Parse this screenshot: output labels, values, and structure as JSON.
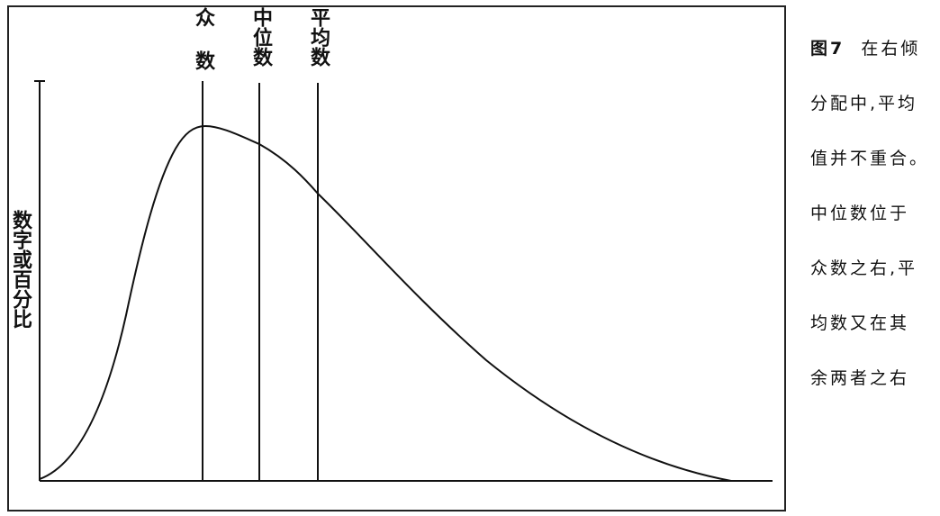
{
  "figure": {
    "ylabel": "数字或百分比",
    "markers": {
      "mode_label": "众数",
      "median_label": "中位数",
      "mean_label": "平均数"
    },
    "curve": {
      "shape": "right-skewed distribution",
      "order_of_markers": [
        "众数",
        "中位数",
        "平均数"
      ]
    },
    "caption": {
      "figure_number": "图7",
      "lines": [
        "在右倾",
        "分配中,平均",
        "值并不重合。",
        "中位数位于",
        "众数之右,平",
        "均数又在其",
        "余两者之右"
      ]
    }
  }
}
